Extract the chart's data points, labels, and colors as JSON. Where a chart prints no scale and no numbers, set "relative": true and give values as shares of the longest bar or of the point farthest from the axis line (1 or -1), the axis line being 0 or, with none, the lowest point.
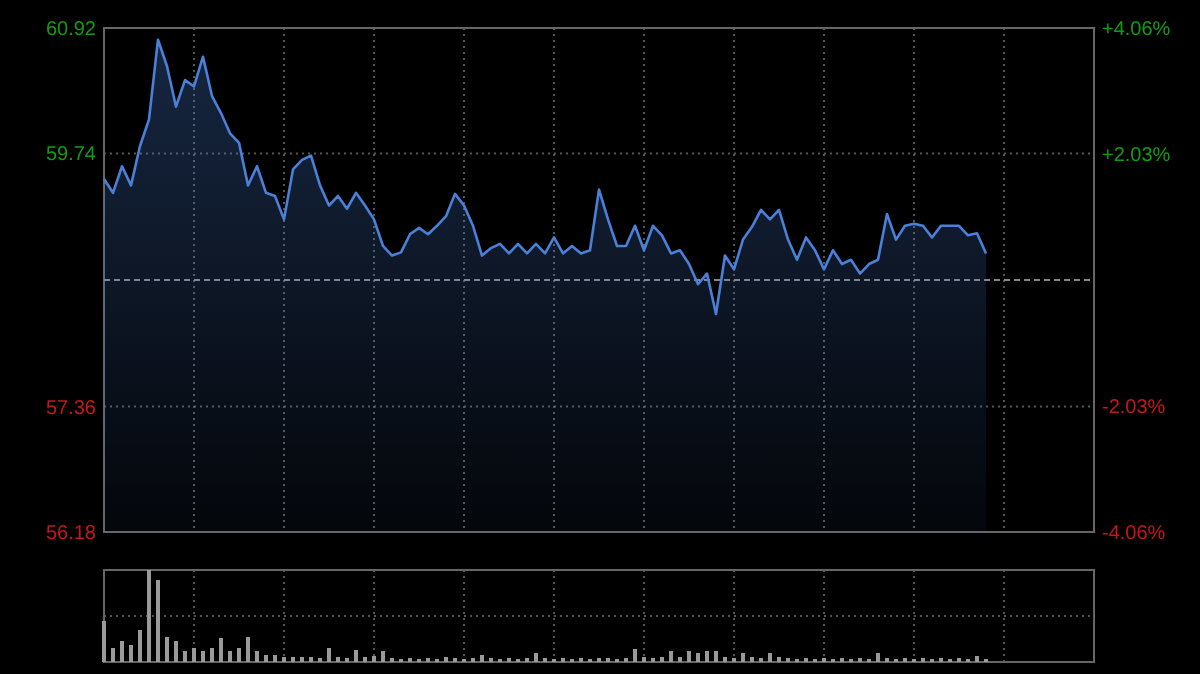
{
  "chart_data": [
    {
      "type": "area",
      "categories": [
        null,
        null,
        null,
        null,
        null,
        null,
        null,
        null,
        null,
        null,
        null,
        null,
        null,
        null,
        null,
        null,
        null,
        null,
        null,
        null,
        null,
        null,
        null,
        null,
        null,
        null,
        null,
        null,
        null,
        null,
        null,
        null,
        null,
        null,
        null,
        null,
        null,
        null,
        null,
        null,
        null,
        null,
        null,
        null,
        null,
        null,
        null,
        null,
        null,
        null,
        null,
        null,
        null,
        null,
        null,
        null,
        null,
        null,
        null,
        null,
        null,
        null,
        null,
        null,
        null,
        null,
        null,
        null,
        null,
        null,
        null,
        null,
        null,
        null,
        null,
        null,
        null,
        null,
        null,
        null,
        null,
        null,
        null,
        null,
        null,
        null,
        null,
        null,
        null,
        null,
        null,
        null,
        null,
        null,
        null,
        null,
        null,
        null,
        null
      ],
      "series": [
        {
          "color": "#4a80d8",
          "values": [
            59.5,
            59.37,
            59.62,
            59.44,
            59.81,
            60.06,
            60.81,
            60.56,
            60.18,
            60.43,
            60.37,
            60.65,
            60.28,
            60.12,
            59.93,
            59.84,
            59.44,
            59.62,
            59.37,
            59.34,
            59.12,
            59.59,
            59.68,
            59.72,
            59.44,
            59.25,
            59.34,
            59.22,
            59.37,
            59.25,
            59.12,
            58.87,
            58.78,
            58.81,
            58.98,
            59.04,
            58.98,
            59.06,
            59.15,
            59.36,
            59.25,
            59.06,
            58.78,
            58.85,
            58.89,
            58.8,
            58.89,
            58.8,
            58.89,
            58.8,
            58.95,
            58.8,
            58.87,
            58.8,
            58.83,
            59.4,
            59.12,
            58.87,
            58.87,
            59.06,
            58.83,
            59.06,
            58.97,
            58.8,
            58.83,
            58.7,
            58.51,
            58.61,
            58.23,
            58.78,
            58.65,
            58.93,
            59.05,
            59.21,
            59.12,
            59.21,
            58.93,
            58.74,
            58.95,
            58.83,
            58.65,
            58.83,
            58.7,
            58.74,
            58.61,
            58.7,
            58.74,
            59.17,
            58.93,
            59.06,
            59.08,
            59.06,
            58.95,
            59.06,
            59.06,
            59.06,
            58.97,
            58.99,
            58.8
          ]
        }
      ],
      "ylim": [
        56.18,
        60.92
      ],
      "yticks": [
        56.18,
        57.36,
        59.74,
        60.92
      ],
      "y2lim": [
        -4.06,
        4.06
      ],
      "y2ticks": [
        {
          "value": -4.06,
          "label": "-4.06%"
        },
        {
          "value": -2.03,
          "label": "-2.03%"
        },
        {
          "value": 2.03,
          "label": "+2.03%"
        },
        {
          "value": 4.06,
          "label": "+4.06%"
        }
      ],
      "ref_lines": [
        {
          "axis": "y",
          "value": 58.55,
          "line_style": "dashed"
        }
      ],
      "grid": true
    },
    {
      "type": "bar",
      "relative": true,
      "color": "#9a9a9a",
      "grid": true,
      "categories": [
        null,
        null,
        null,
        null,
        null,
        null,
        null,
        null,
        null,
        null,
        null,
        null,
        null,
        null,
        null,
        null,
        null,
        null,
        null,
        null,
        null,
        null,
        null,
        null,
        null,
        null,
        null,
        null,
        null,
        null,
        null,
        null,
        null,
        null,
        null,
        null,
        null,
        null,
        null,
        null,
        null,
        null,
        null,
        null,
        null,
        null,
        null,
        null,
        null,
        null,
        null,
        null,
        null,
        null,
        null,
        null,
        null,
        null,
        null,
        null,
        null,
        null,
        null,
        null,
        null,
        null,
        null,
        null,
        null,
        null,
        null,
        null,
        null,
        null,
        null,
        null,
        null,
        null,
        null,
        null,
        null,
        null,
        null,
        null,
        null,
        null,
        null,
        null,
        null,
        null,
        null,
        null,
        null,
        null,
        null,
        null,
        null,
        null,
        null
      ],
      "values": [
        0.45,
        0.15,
        0.23,
        0.19,
        0.35,
        1,
        0.89,
        0.27,
        0.23,
        0.12,
        0.15,
        0.12,
        0.15,
        0.26,
        0.12,
        0.15,
        0.27,
        0.12,
        0.08,
        0.08,
        0.05,
        0.05,
        0.05,
        0.05,
        0.04,
        0.15,
        0.05,
        0.04,
        0.13,
        0.05,
        0.06,
        0.12,
        0.04,
        0.03,
        0.04,
        0.03,
        0.04,
        0.03,
        0.05,
        0.04,
        0.03,
        0.04,
        0.08,
        0.04,
        0.03,
        0.04,
        0.03,
        0.04,
        0.1,
        0.04,
        0.03,
        0.04,
        0.03,
        0.04,
        0.03,
        0.04,
        0.04,
        0.03,
        0.04,
        0.14,
        0.05,
        0.04,
        0.05,
        0.12,
        0.05,
        0.12,
        0.1,
        0.12,
        0.12,
        0.05,
        0.04,
        0.1,
        0.05,
        0.04,
        0.1,
        0.05,
        0.04,
        0.03,
        0.04,
        0.03,
        0.04,
        0.03,
        0.04,
        0.03,
        0.04,
        0.03,
        0.1,
        0.04,
        0.03,
        0.04,
        0.03,
        0.04,
        0.03,
        0.04,
        0.03,
        0.04,
        0.03,
        0.06,
        0.03
      ]
    }
  ]
}
